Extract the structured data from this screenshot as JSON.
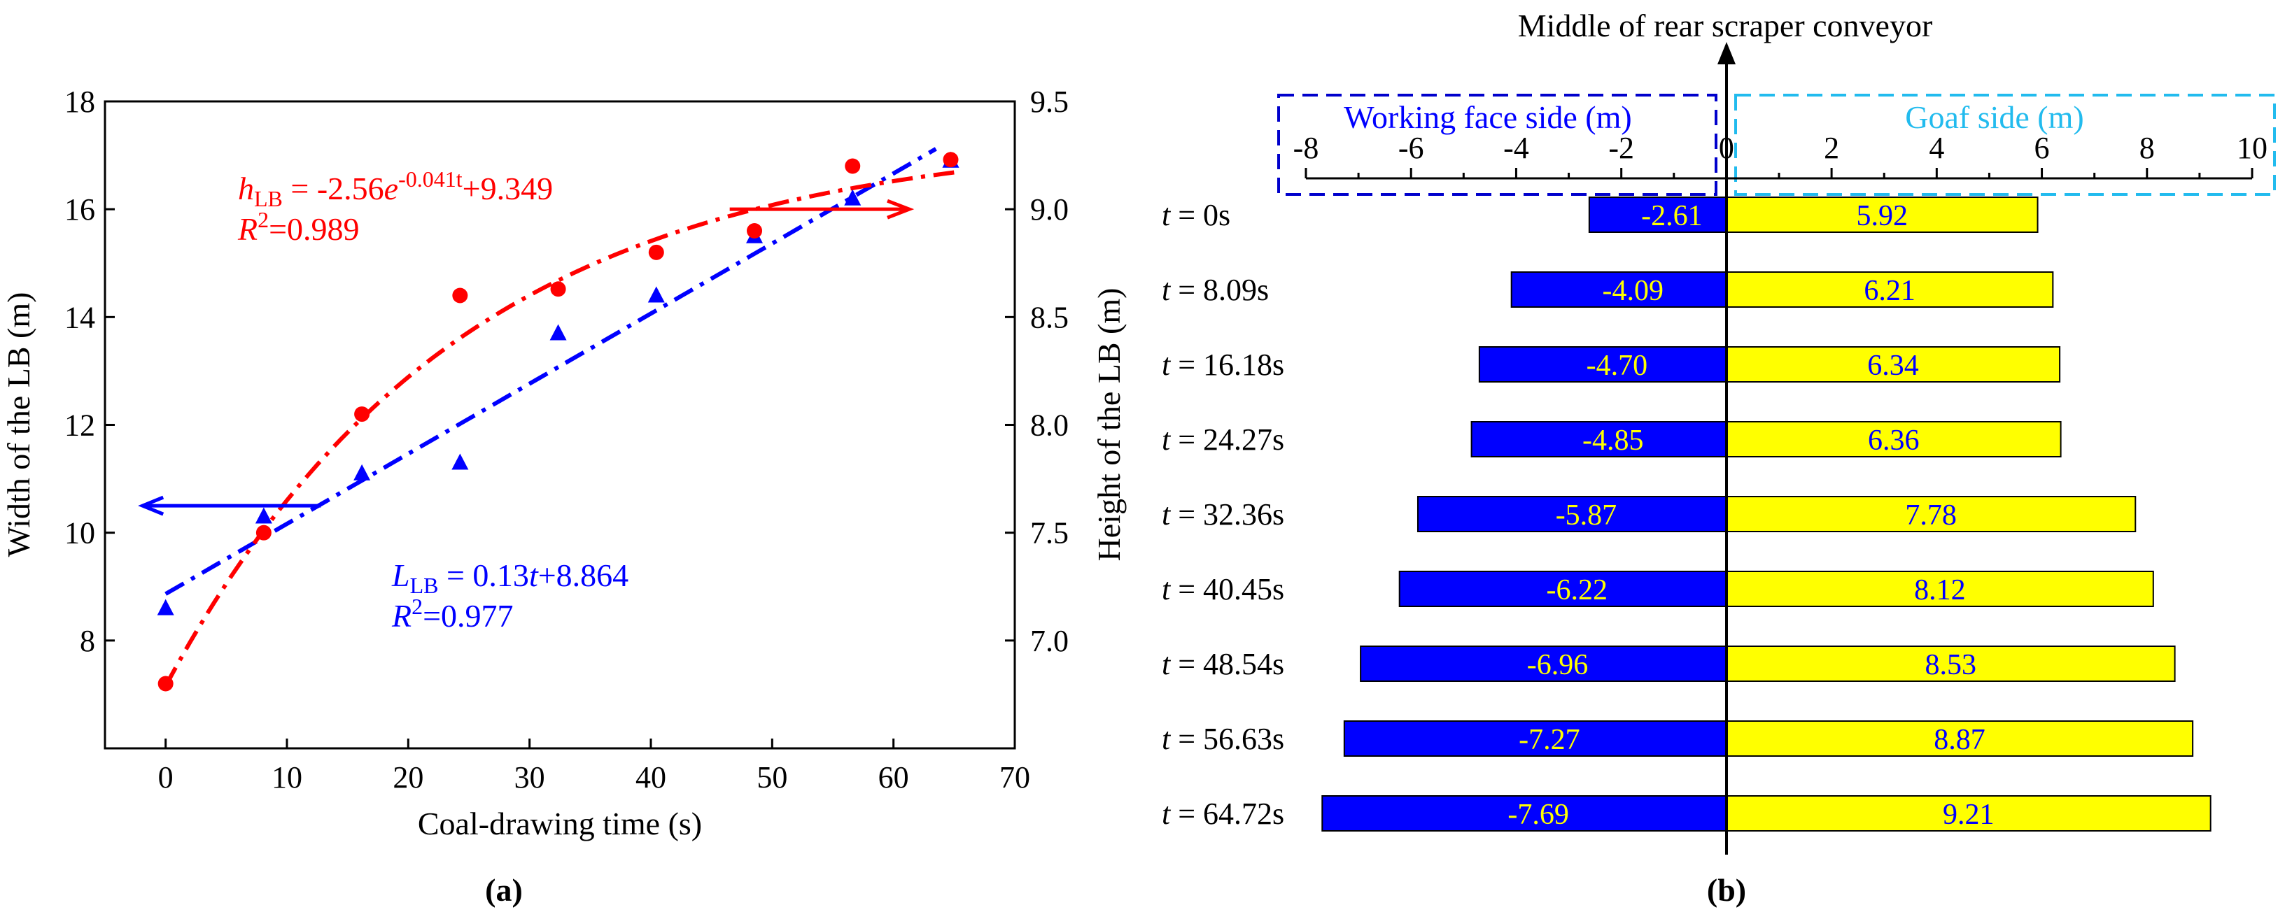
{
  "chart_data": [
    {
      "type": "scatter",
      "panel_label": "(a)",
      "xlabel": "Coal-drawing time (s)",
      "ylabel": "Width of the LB (m)",
      "y2label": "Height of the LB (m)",
      "xlim": [
        -5,
        70
      ],
      "ylim": [
        6,
        18
      ],
      "y2lim": [
        6.5,
        9.5
      ],
      "xticks": [
        0,
        10,
        20,
        30,
        40,
        50,
        60,
        70
      ],
      "yticks": [
        8,
        10,
        12,
        14,
        16,
        18
      ],
      "y2ticks": [
        "7.0",
        "7.5",
        "8.0",
        "8.5",
        "9.0",
        "9.5"
      ],
      "x": [
        0,
        8.09,
        16.18,
        24.27,
        32.36,
        40.45,
        48.54,
        56.63,
        64.72
      ],
      "series": [
        {
          "name": "Width of the LB",
          "axis": "left",
          "marker": "triangle",
          "color": "#0000ff",
          "values": [
            8.6,
            10.3,
            11.1,
            11.3,
            13.7,
            14.4,
            15.5,
            16.2,
            16.9
          ],
          "fit": {
            "model": "linear",
            "a": 0.13,
            "b": 8.864,
            "label_lead": "L",
            "label_sub": "LB",
            "label_rest": " = 0.13",
            "label_var": "t",
            "label_tail": "+8.864",
            "r2_var": "R",
            "r2_tail": "=0.977"
          }
        },
        {
          "name": "Height of the LB",
          "axis": "right",
          "marker": "circle",
          "color": "#ff0000",
          "values": [
            6.8,
            7.5,
            8.05,
            8.6,
            8.63,
            8.8,
            8.9,
            9.2,
            9.23
          ],
          "fit": {
            "model": "exponential",
            "a": -2.56,
            "k": -0.041,
            "c": 9.349,
            "label_lead": "h",
            "label_sub": "LB",
            "label_rest": " = -2.56",
            "label_var": "e",
            "label_exp": "-0.041t",
            "label_tail": "+9.349",
            "r2_var": "R",
            "r2_tail": "=0.989"
          }
        }
      ]
    },
    {
      "type": "bar",
      "orientation": "horizontal",
      "panel_label": "(b)",
      "title": "Middle of rear scraper conveyor",
      "left_group_label": "Working face side (m)",
      "right_group_label": "Goaf side (m)",
      "xlim": [
        -8,
        10
      ],
      "xticks": [
        "-8",
        "-6",
        "-4",
        "-2",
        "0",
        "2",
        "4",
        "6",
        "8",
        "10"
      ],
      "row_prefix": "t",
      "categories": [
        "= 0s",
        "= 8.09s",
        "= 16.18s",
        "= 24.27s",
        "= 32.36s",
        "= 40.45s",
        "= 48.54s",
        "= 56.63s",
        "= 64.72s"
      ],
      "series": [
        {
          "name": "Working face side",
          "color": "#0000ff",
          "label_color": "#ffff00",
          "values": [
            -2.61,
            -4.09,
            -4.7,
            -4.85,
            -5.87,
            -6.22,
            -6.96,
            -7.27,
            -7.69
          ],
          "labels": [
            "-2.61",
            "-4.09",
            "-4.70",
            "-4.85",
            "-5.87",
            "-6.22",
            "-6.96",
            "-7.27",
            "-7.69"
          ]
        },
        {
          "name": "Goaf side",
          "color": "#ffff00",
          "label_color": "#0000ff",
          "values": [
            5.92,
            6.21,
            6.34,
            6.36,
            7.78,
            8.12,
            8.53,
            8.87,
            9.21
          ],
          "labels": [
            "5.92",
            "6.21",
            "6.34",
            "6.36",
            "7.78",
            "8.12",
            "8.53",
            "8.87",
            "9.21"
          ]
        }
      ],
      "colors": {
        "left_box": "#0000cc",
        "right_box": "#22bbee"
      }
    }
  ]
}
